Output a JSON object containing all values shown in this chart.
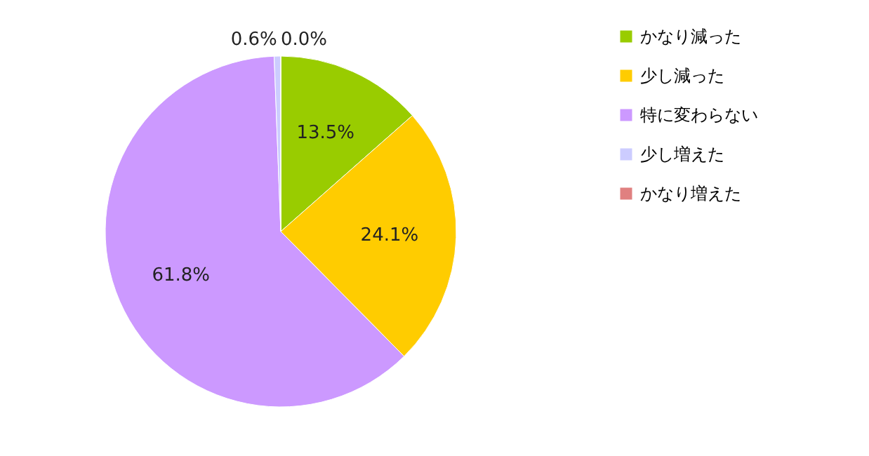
{
  "chart_data": {
    "type": "pie",
    "categories": [
      "かなり減った",
      "少し減った",
      "特に変わらない",
      "少し増えた",
      "かなり増えた"
    ],
    "values": [
      13.5,
      24.1,
      61.8,
      0.6,
      0.0
    ],
    "colors": [
      "#99cc00",
      "#ffcc00",
      "#cc99ff",
      "#ccccff",
      "#e08080"
    ],
    "value_labels": [
      "13.5%",
      "24.1%",
      "61.8%",
      "0.6%",
      "0.0%"
    ],
    "legend": "right"
  }
}
